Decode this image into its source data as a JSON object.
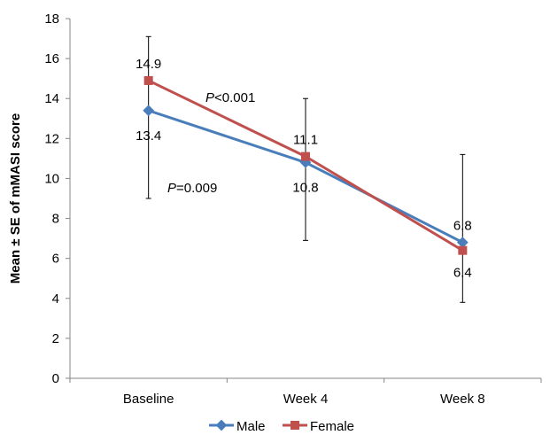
{
  "chart_data": {
    "type": "line",
    "categories": [
      "Baseline",
      "Week 4",
      "Week 8"
    ],
    "series": [
      {
        "name": "Male",
        "values": [
          13.4,
          10.8,
          6.8
        ],
        "labels": [
          "13.4",
          "10.8",
          "6.8"
        ],
        "error_low": [
          9.0,
          6.9,
          3.8
        ],
        "error_high": [
          17.1,
          14.0,
          11.2
        ],
        "color": "#4a7ebb",
        "marker": "diamond"
      },
      {
        "name": "Female",
        "values": [
          14.9,
          11.1,
          6.4
        ],
        "labels": [
          "14.9",
          "11.1",
          "6.4"
        ],
        "color": "#c0504d",
        "marker": "square"
      }
    ],
    "ylabel": "Mean ± SE of mMASI score",
    "xlabel": "",
    "ylim": [
      0,
      18
    ],
    "yticks": [
      "0",
      "2",
      "4",
      "6",
      "8",
      "10",
      "12",
      "14",
      "16",
      "18"
    ],
    "annotations": [
      {
        "italic": "P",
        "text": "<0.001"
      },
      {
        "italic": "P",
        "text": "=0.009"
      }
    ],
    "legend": "bottom",
    "grid": false
  }
}
